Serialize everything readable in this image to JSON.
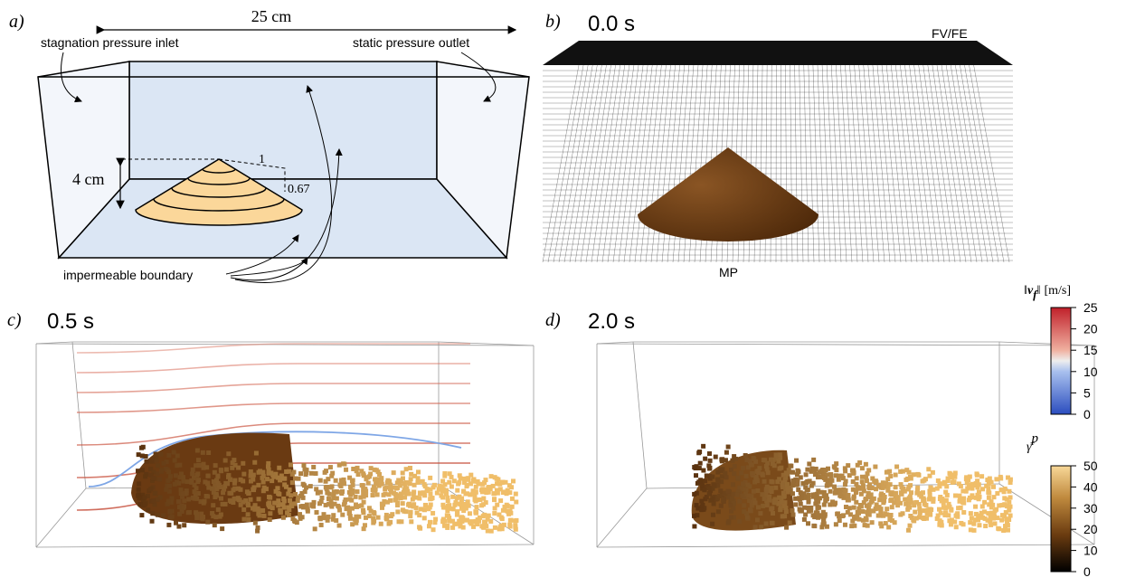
{
  "panels": [
    {
      "tag": "a)",
      "width_label": "25 cm",
      "inlet": "stagnation pressure inlet",
      "outlet": "static pressure outlet",
      "height_label": "4 cm",
      "slope_run": "1",
      "slope_rise": "0.67",
      "boundary": "impermeable boundary"
    },
    {
      "tag": "b)",
      "time": "0.0 s",
      "mesh_label": "FV/FE",
      "particle_label": "MP"
    },
    {
      "tag": "c)",
      "time": "0.5 s"
    },
    {
      "tag": "d)",
      "time": "2.0 s"
    }
  ],
  "colorbars": [
    {
      "label": {
        "pre": "‖",
        "var": "v",
        "sub": "f",
        "post": "‖",
        "unit": "[m/s]"
      },
      "ticks": [
        0,
        5,
        10,
        15,
        20,
        25
      ],
      "range": [
        0,
        25
      ]
    },
    {
      "label": {
        "var": "γ̄",
        "sup": "p"
      },
      "ticks": [
        0,
        10,
        20,
        30,
        40,
        50
      ],
      "range": [
        0,
        50
      ]
    }
  ]
}
